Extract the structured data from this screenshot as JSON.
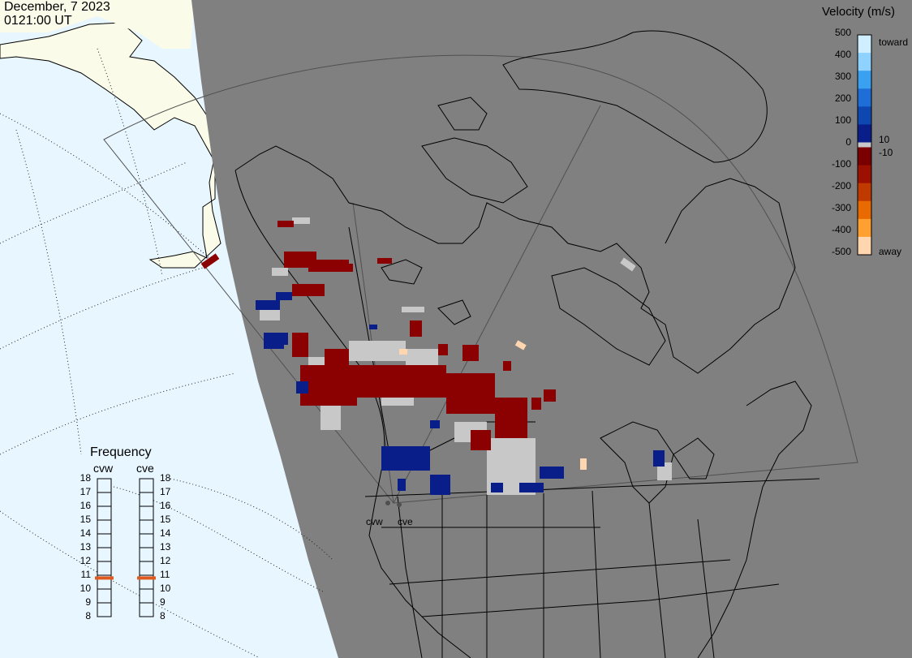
{
  "header": {
    "date": "December, 7 2023",
    "time": "0121:00 UT"
  },
  "velocity_scale": {
    "title": "Velocity (m/s)",
    "tick_labels": [
      "500",
      "400",
      "300",
      "200",
      "100",
      "0",
      "-100",
      "-200",
      "-300",
      "-400",
      "-500"
    ],
    "inner_labels": [
      "10",
      "-10"
    ],
    "toward_label": "toward",
    "away_label": "away",
    "colors": [
      "#cfeeff",
      "#8fd2ff",
      "#3aa0f0",
      "#1f6ed8",
      "#0f47b0",
      "#0a1e8a",
      "#7a0000",
      "#9b1000",
      "#c03a00",
      "#e86a00",
      "#ffa030",
      "#ffd6b0"
    ],
    "ground_scatter_color": "#c8c8c8"
  },
  "frequency": {
    "title": "Frequency",
    "radars": [
      "cvw",
      "cve"
    ],
    "mhz_labels": [
      "18",
      "17",
      "16",
      "15",
      "14",
      "13",
      "12",
      "11",
      "10",
      "9",
      "8"
    ],
    "cvw_mhz": 10.8,
    "cve_mhz": 10.8,
    "marker_color": "#e05a20"
  },
  "sites": {
    "cvw": "cvw",
    "cve": "cve"
  },
  "colors": {
    "night": "#808080",
    "day_ocean": "#e8f6ff",
    "day_land": "#fbfbe9",
    "coast": "#000000",
    "grid": "#444444"
  }
}
